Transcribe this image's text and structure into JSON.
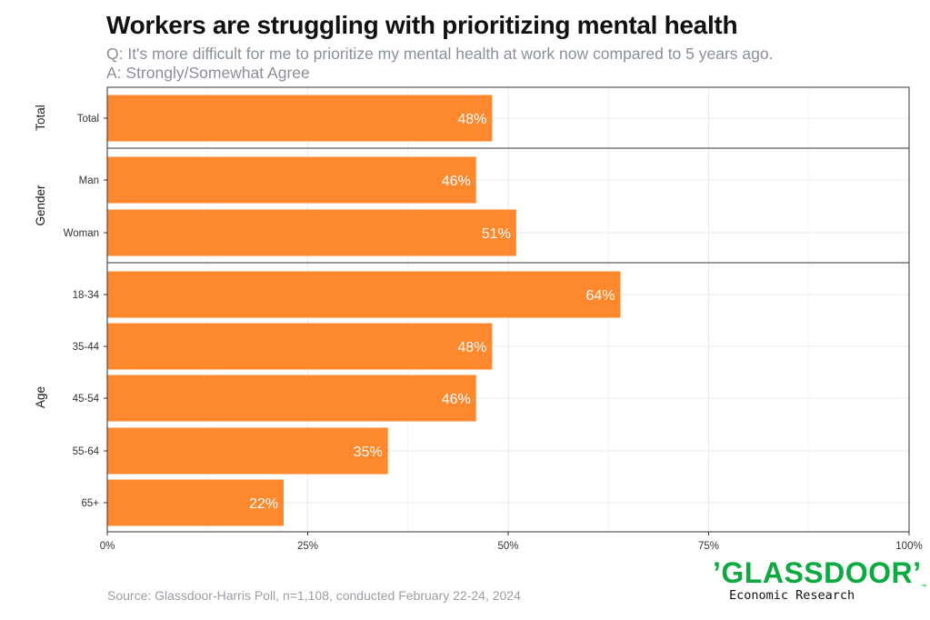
{
  "title": "Workers are struggling with prioritizing mental health",
  "subtitle_q": "Q: It's more difficult for me to prioritize my mental health at work now compared to 5 years ago.",
  "subtitle_a": "A: Strongly/Somewhat Agree",
  "source": "Source: Glassdoor-Harris Poll, n=1,108, conducted February 22-24, 2024",
  "logo": {
    "brand": "’GLASSDOOR’",
    "tm": "™",
    "tagline": "Economic Research"
  },
  "colors": {
    "bar": "#fe882d",
    "grid": "#ebebeb",
    "label": "#ffffff",
    "frame": "#333333"
  },
  "chart_data": {
    "type": "bar",
    "orientation": "horizontal",
    "xlim": [
      0,
      100
    ],
    "x_ticks": [
      "0%",
      "25%",
      "50%",
      "75%",
      "100%"
    ],
    "x_tick_values": [
      0,
      25,
      50,
      75,
      100
    ],
    "groups": [
      {
        "name": "Total",
        "categories": [
          "Total"
        ],
        "values": [
          48
        ],
        "labels": [
          "48%"
        ]
      },
      {
        "name": "Gender",
        "categories": [
          "Man",
          "Woman"
        ],
        "values": [
          46,
          51
        ],
        "labels": [
          "46%",
          "51%"
        ]
      },
      {
        "name": "Age",
        "categories": [
          "18-34",
          "35-44",
          "45-54",
          "55-64",
          "65+"
        ],
        "values": [
          64,
          48,
          46,
          35,
          22
        ],
        "labels": [
          "64%",
          "48%",
          "46%",
          "35%",
          "22%"
        ]
      }
    ]
  }
}
